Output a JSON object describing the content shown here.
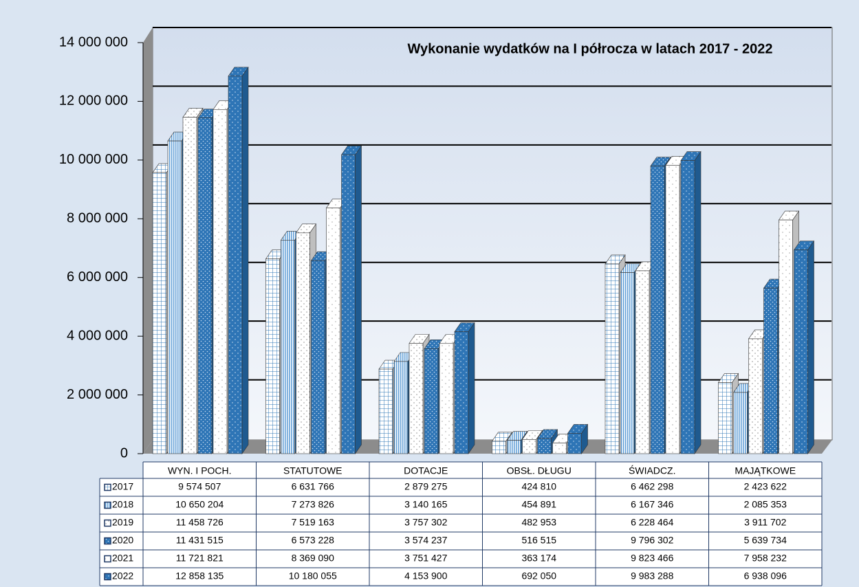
{
  "chart_data": {
    "type": "bar",
    "title": "Wykonanie wydatków na I półrocza w latach 2017 - 2022",
    "categories": [
      "WYN. I POCH.",
      "STATUTOWE",
      "DOTACJE",
      "OBSŁ. DŁUGU",
      "ŚWIADCZ.",
      "MAJĄTKOWE"
    ],
    "series": [
      {
        "name": "2017",
        "color": "#ffffff",
        "values": [
          9574507,
          6631766,
          2879275,
          424810,
          6462298,
          2423622
        ],
        "value_labels": [
          "9 574 507",
          "6 631 766",
          "2 879 275",
          "424 810",
          "6 462 298",
          "2 423 622"
        ]
      },
      {
        "name": "2018",
        "color": "#5b9bd5",
        "values": [
          10650204,
          7273826,
          3140165,
          454891,
          6167346,
          2085353
        ],
        "value_labels": [
          "10 650 204",
          "7 273 826",
          "3 140 165",
          "454 891",
          "6 167 346",
          "2 085 353"
        ]
      },
      {
        "name": "2019",
        "color": "#ffffff",
        "values": [
          11458726,
          7519163,
          3757302,
          482953,
          6228464,
          3911702
        ],
        "value_labels": [
          "11 458 726",
          "7 519 163",
          "3 757 302",
          "482 953",
          "6 228 464",
          "3 911 702"
        ]
      },
      {
        "name": "2020",
        "color": "#2e75b6",
        "values": [
          11431515,
          6573228,
          3574237,
          516515,
          9796302,
          5639734
        ],
        "value_labels": [
          "11 431 515",
          "6 573 228",
          "3 574 237",
          "516 515",
          "9 796 302",
          "5 639 734"
        ]
      },
      {
        "name": "2021",
        "color": "#ffffff",
        "values": [
          11721821,
          8369090,
          3751427,
          363174,
          9823466,
          7958232
        ],
        "value_labels": [
          "11 721 821",
          "8 369 090",
          "3 751 427",
          "363 174",
          "9 823 466",
          "7 958 232"
        ]
      },
      {
        "name": "2022",
        "color": "#2e75b6",
        "values": [
          12858135,
          10180055,
          4153900,
          692050,
          9983288,
          6938096
        ],
        "value_labels": [
          "12 858 135",
          "10 180 055",
          "4 153 900",
          "692 050",
          "9 983 288",
          "6 938 096"
        ]
      }
    ],
    "ylim": [
      0,
      14000000
    ],
    "yticks": [
      {
        "value": 0,
        "label": "0"
      },
      {
        "value": 2000000,
        "label": "2 000 000"
      },
      {
        "value": 4000000,
        "label": "4 000 000"
      },
      {
        "value": 6000000,
        "label": "6 000 000"
      },
      {
        "value": 8000000,
        "label": "8 000 000"
      },
      {
        "value": 10000000,
        "label": "10 000 000"
      },
      {
        "value": 12000000,
        "label": "12 000 000"
      },
      {
        "value": 14000000,
        "label": "14 000 000"
      }
    ],
    "grid": true
  }
}
